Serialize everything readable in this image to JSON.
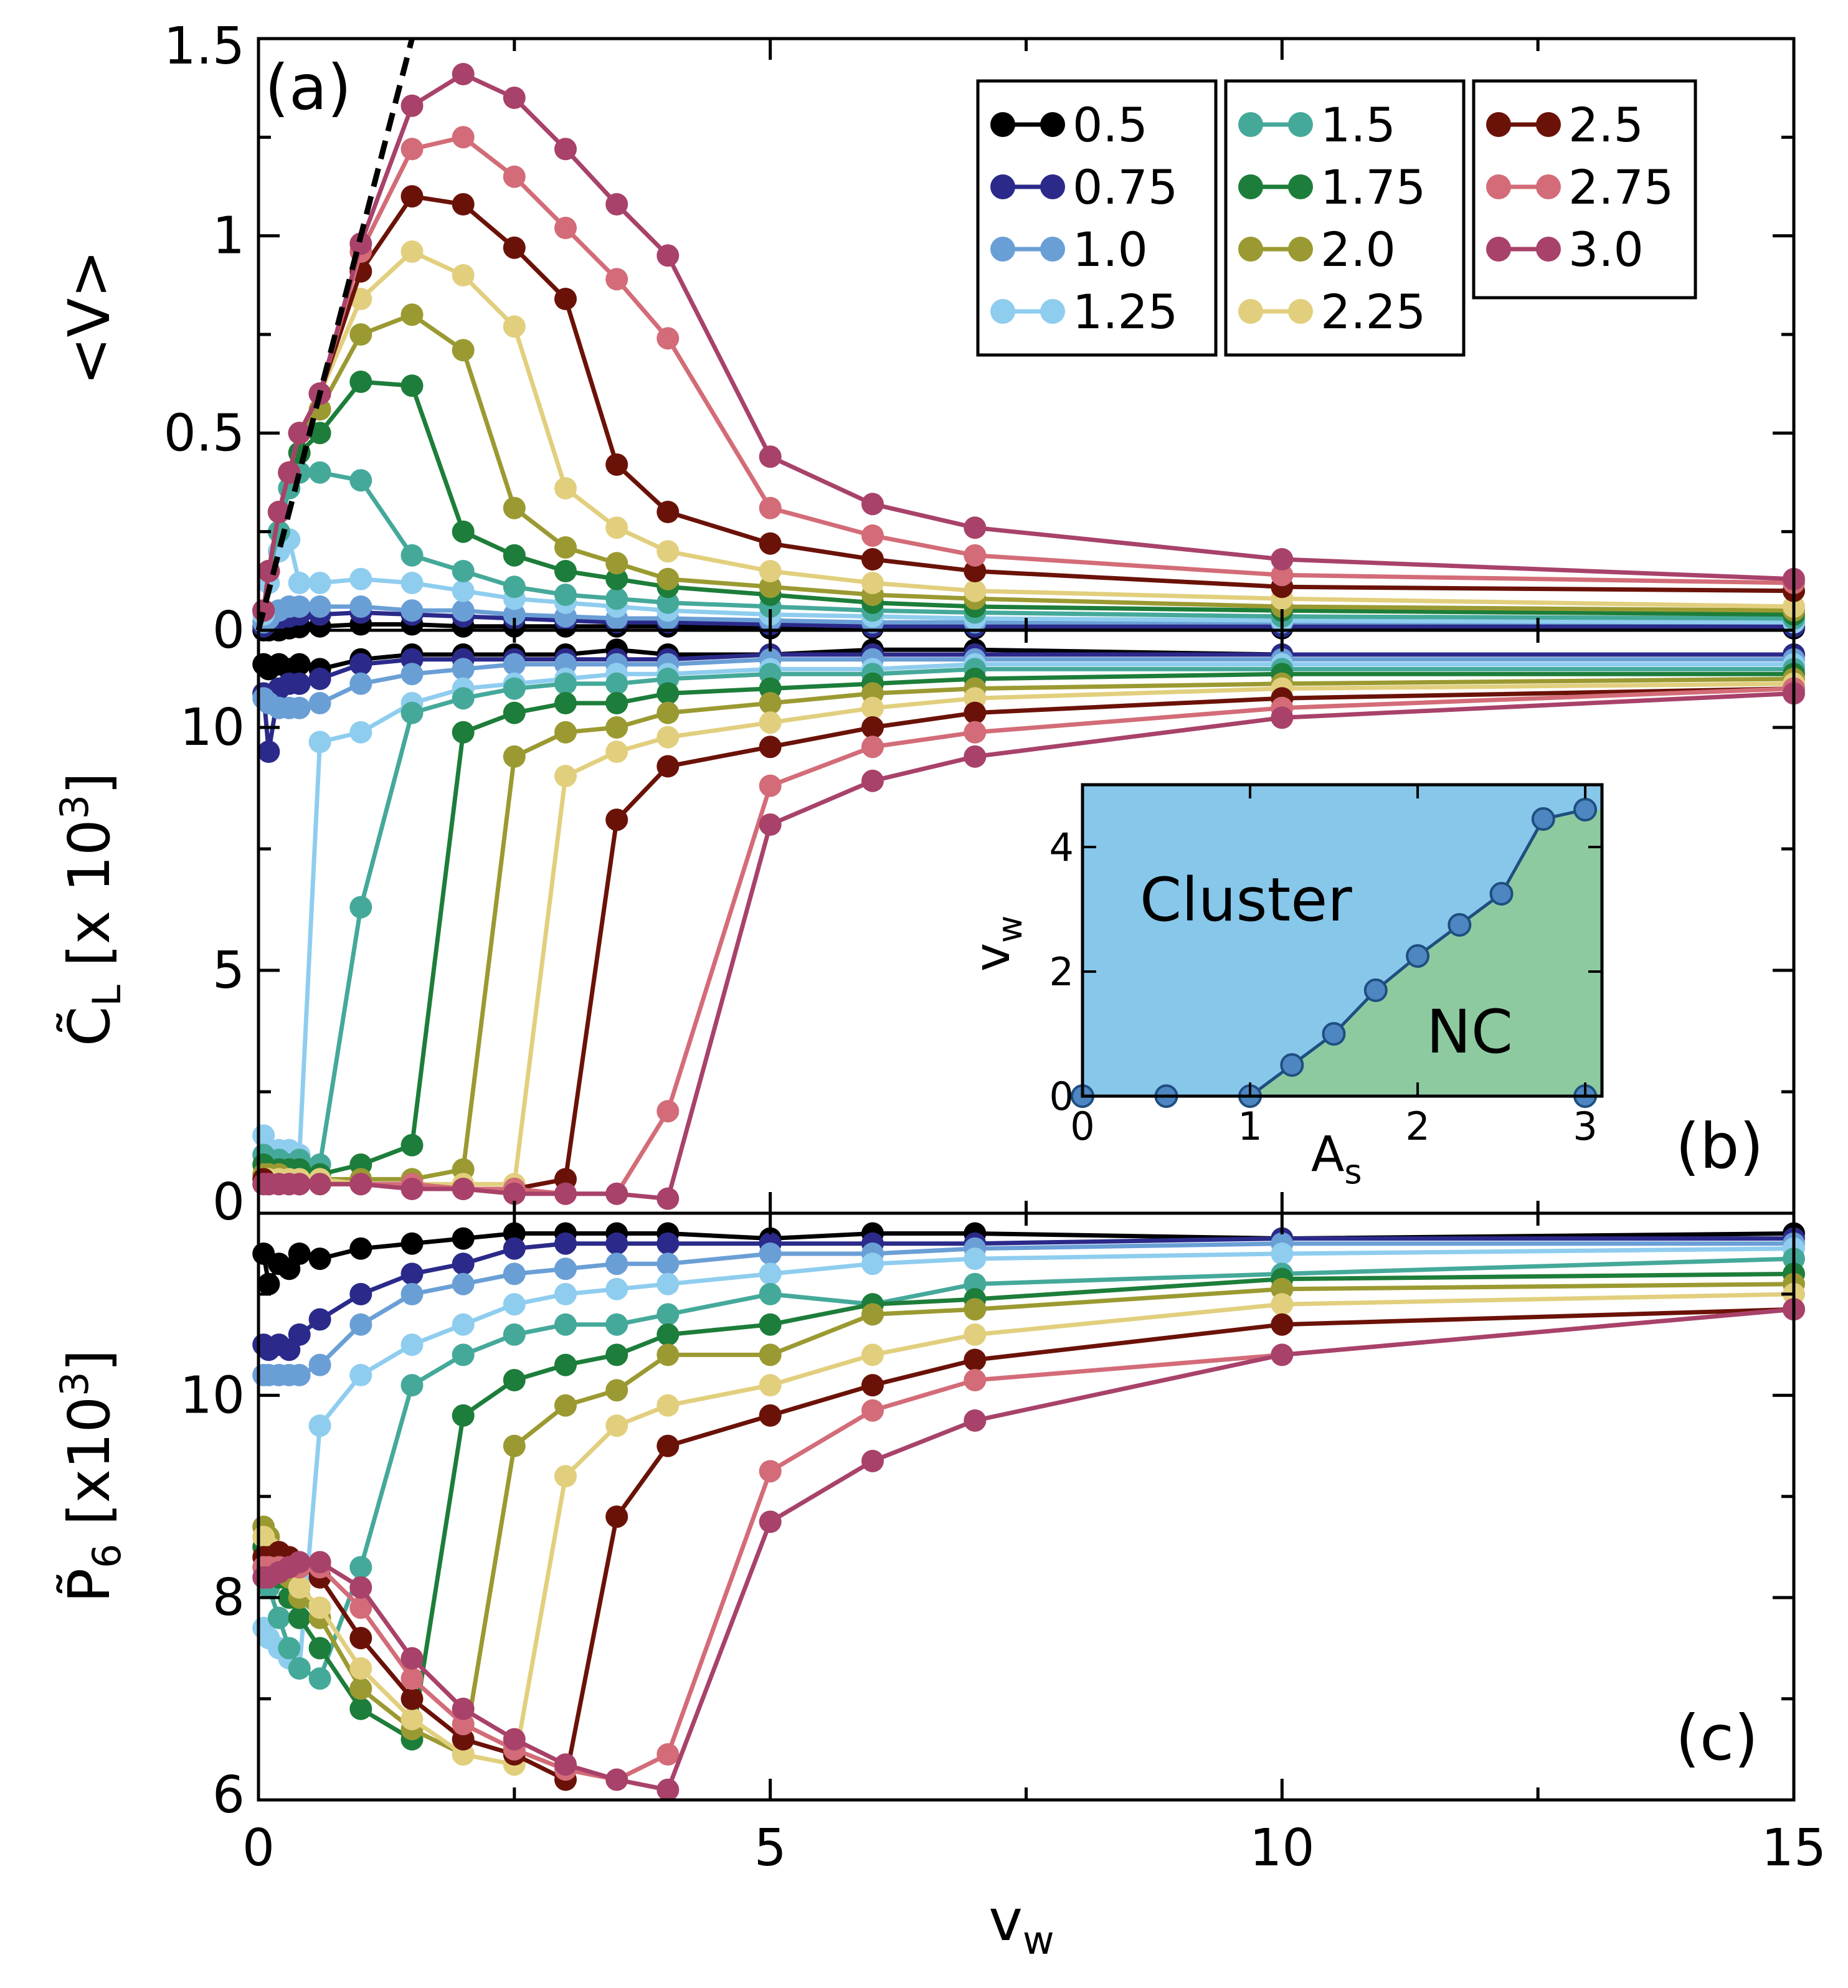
{
  "legend": [
    "0.5",
    "0.75",
    "1.0",
    "1.25",
    "1.5",
    "1.75",
    "2.0",
    "2.25",
    "2.5",
    "2.75",
    "3.0"
  ],
  "colors": [
    "#000000",
    "#2b2a8a",
    "#6a9fd6",
    "#8fcdef",
    "#45a99a",
    "#1d7d3a",
    "#9b9a32",
    "#e2cf7e",
    "#6b1208",
    "#d36c78",
    "#a8426a"
  ],
  "chart_data": [
    {
      "id": "a",
      "type": "line",
      "panel_label": "(a)",
      "ylabel": "<V>",
      "xlabel": "",
      "xlim": [
        0,
        15
      ],
      "ylim": [
        0,
        1.5
      ],
      "x_ticks": [
        "0",
        "5",
        "10",
        "15"
      ],
      "y_ticks": [
        "0",
        "0.5",
        "1",
        "1.5"
      ],
      "x": [
        0.05,
        0.1,
        0.2,
        0.3,
        0.4,
        0.6,
        1,
        1.5,
        2,
        2.5,
        3,
        3.5,
        4,
        5,
        6,
        7,
        10,
        15
      ],
      "series": [
        {
          "name": "0.5",
          "values": [
            0.0,
            0.0,
            0.0,
            0.005,
            0.008,
            0.01,
            0.015,
            0.015,
            0.01,
            0.01,
            0.01,
            0.01,
            0.01,
            0.005,
            0.005,
            0.005,
            0.005,
            0.005
          ]
        },
        {
          "name": "0.75",
          "values": [
            0.01,
            0.02,
            0.03,
            0.035,
            0.04,
            0.04,
            0.045,
            0.04,
            0.035,
            0.03,
            0.025,
            0.02,
            0.02,
            0.015,
            0.01,
            0.01,
            0.01,
            0.01
          ]
        },
        {
          "name": "1.0",
          "values": [
            0.02,
            0.03,
            0.05,
            0.06,
            0.06,
            0.06,
            0.06,
            0.05,
            0.05,
            0.04,
            0.035,
            0.03,
            0.03,
            0.025,
            0.02,
            0.02,
            0.02,
            0.02
          ]
        },
        {
          "name": "1.25",
          "values": [
            0.04,
            0.12,
            0.2,
            0.23,
            0.12,
            0.12,
            0.13,
            0.12,
            0.1,
            0.08,
            0.07,
            0.06,
            0.05,
            0.04,
            0.035,
            0.03,
            0.025,
            0.02
          ]
        },
        {
          "name": "1.5",
          "values": [
            0.05,
            0.15,
            0.25,
            0.36,
            0.4,
            0.4,
            0.38,
            0.19,
            0.15,
            0.11,
            0.09,
            0.08,
            0.07,
            0.06,
            0.05,
            0.045,
            0.035,
            0.03
          ]
        },
        {
          "name": "1.75",
          "values": [
            0.05,
            0.15,
            0.3,
            0.4,
            0.45,
            0.5,
            0.63,
            0.62,
            0.25,
            0.19,
            0.15,
            0.13,
            0.11,
            0.09,
            0.07,
            0.06,
            0.05,
            0.04
          ]
        },
        {
          "name": "2.0",
          "values": [
            0.05,
            0.15,
            0.3,
            0.4,
            0.5,
            0.56,
            0.75,
            0.8,
            0.71,
            0.31,
            0.21,
            0.17,
            0.13,
            0.11,
            0.09,
            0.08,
            0.06,
            0.05
          ]
        },
        {
          "name": "2.25",
          "values": [
            0.05,
            0.15,
            0.3,
            0.4,
            0.5,
            0.6,
            0.84,
            0.96,
            0.9,
            0.77,
            0.36,
            0.26,
            0.2,
            0.15,
            0.12,
            0.1,
            0.08,
            0.06
          ]
        },
        {
          "name": "2.5",
          "values": [
            0.05,
            0.15,
            0.3,
            0.4,
            0.5,
            0.6,
            0.91,
            1.1,
            1.08,
            0.97,
            0.84,
            0.42,
            0.3,
            0.22,
            0.18,
            0.15,
            0.11,
            0.1
          ]
        },
        {
          "name": "2.75",
          "values": [
            0.05,
            0.15,
            0.3,
            0.4,
            0.5,
            0.6,
            0.96,
            1.22,
            1.25,
            1.15,
            1.02,
            0.89,
            0.74,
            0.31,
            0.24,
            0.19,
            0.14,
            0.12
          ]
        },
        {
          "name": "3.0",
          "values": [
            0.05,
            0.15,
            0.3,
            0.4,
            0.5,
            0.6,
            0.98,
            1.33,
            1.41,
            1.35,
            1.22,
            1.08,
            0.95,
            0.44,
            0.32,
            0.26,
            0.18,
            0.13
          ]
        }
      ],
      "reference_line": {
        "style": "dashed",
        "x": [
          0,
          1.5
        ],
        "y": [
          0,
          1.5
        ]
      }
    },
    {
      "id": "b",
      "type": "line",
      "panel_label": "(b)",
      "ylabel": "C̃",
      "ylabel_sub": "L",
      "ylabel_rest": " [x 10",
      "ylabel_sup": "3",
      "ylabel_end": "]",
      "xlabel": "",
      "xlim": [
        0,
        15
      ],
      "ylim": [
        0,
        12
      ],
      "x_ticks": [
        "0",
        "5",
        "10",
        "15"
      ],
      "y_ticks": [
        "0",
        "5",
        "10"
      ],
      "x": [
        0.05,
        0.1,
        0.2,
        0.3,
        0.4,
        0.6,
        1,
        1.5,
        2,
        2.5,
        3,
        3.5,
        4,
        5,
        6,
        7,
        10,
        15
      ],
      "series": [
        {
          "name": "0.5",
          "values": [
            11.3,
            11.2,
            11.3,
            11.2,
            11.3,
            11.2,
            11.4,
            11.5,
            11.5,
            11.5,
            11.5,
            11.6,
            11.5,
            11.5,
            11.6,
            11.6,
            11.5,
            11.5
          ]
        },
        {
          "name": "0.75",
          "values": [
            10.7,
            9.5,
            10.8,
            10.9,
            10.9,
            11.0,
            11.3,
            11.4,
            11.4,
            11.4,
            11.4,
            11.4,
            11.4,
            11.5,
            11.5,
            11.5,
            11.5,
            11.5
          ]
        },
        {
          "name": "1.0",
          "values": [
            10.6,
            10.5,
            10.4,
            10.4,
            10.4,
            10.5,
            10.9,
            11.1,
            11.2,
            11.3,
            11.3,
            11.3,
            11.3,
            11.4,
            11.4,
            11.4,
            11.4,
            11.4
          ]
        },
        {
          "name": "1.25",
          "values": [
            1.6,
            1.3,
            1.3,
            1.3,
            1.2,
            9.7,
            9.9,
            10.5,
            10.8,
            10.9,
            11.0,
            11.1,
            11.1,
            11.2,
            11.2,
            11.3,
            11.3,
            11.3
          ]
        },
        {
          "name": "1.5",
          "values": [
            1.2,
            1.1,
            1.1,
            1.0,
            1.1,
            1.0,
            6.3,
            10.3,
            10.6,
            10.8,
            10.9,
            10.9,
            11.0,
            11.1,
            11.1,
            11.2,
            11.2,
            11.2
          ]
        },
        {
          "name": "1.75",
          "values": [
            1.0,
            0.9,
            0.9,
            0.9,
            0.9,
            0.8,
            1.0,
            1.4,
            9.9,
            10.3,
            10.5,
            10.5,
            10.7,
            10.8,
            10.9,
            11.0,
            11.1,
            11.1
          ]
        },
        {
          "name": "2.0",
          "values": [
            0.8,
            0.8,
            0.8,
            0.7,
            0.7,
            0.7,
            0.7,
            0.7,
            0.9,
            9.4,
            9.9,
            10.0,
            10.3,
            10.5,
            10.7,
            10.8,
            10.9,
            11.0
          ]
        },
        {
          "name": "2.25",
          "values": [
            0.7,
            0.7,
            0.7,
            0.7,
            0.7,
            0.7,
            0.6,
            0.6,
            0.6,
            0.6,
            9.0,
            9.5,
            9.8,
            10.1,
            10.4,
            10.6,
            10.8,
            10.9
          ]
        },
        {
          "name": "2.5",
          "values": [
            0.7,
            0.6,
            0.6,
            0.6,
            0.6,
            0.6,
            0.6,
            0.6,
            0.5,
            0.5,
            0.7,
            8.1,
            9.2,
            9.6,
            10.0,
            10.3,
            10.6,
            10.8
          ]
        },
        {
          "name": "2.75",
          "values": [
            0.6,
            0.6,
            0.6,
            0.6,
            0.6,
            0.6,
            0.6,
            0.6,
            0.5,
            0.5,
            0.4,
            0.4,
            2.1,
            8.8,
            9.6,
            9.9,
            10.4,
            10.8
          ]
        },
        {
          "name": "3.0",
          "values": [
            0.6,
            0.6,
            0.6,
            0.6,
            0.6,
            0.6,
            0.6,
            0.5,
            0.5,
            0.4,
            0.4,
            0.4,
            0.3,
            8.0,
            8.9,
            9.4,
            10.2,
            10.7
          ]
        }
      ]
    },
    {
      "id": "c",
      "type": "line",
      "panel_label": "(c)",
      "ylabel": "P̃",
      "ylabel_sub": "6",
      "ylabel_rest": " [x10",
      "ylabel_sup": "3",
      "ylabel_end": "]",
      "xlabel": "v",
      "xlabel_sub": "w",
      "xlim": [
        0,
        15
      ],
      "ylim": [
        6,
        11.8
      ],
      "x_ticks": [
        "0",
        "5",
        "10",
        "15"
      ],
      "y_ticks": [
        "6",
        "8",
        "10"
      ],
      "x": [
        0.05,
        0.1,
        0.2,
        0.3,
        0.4,
        0.6,
        1,
        1.5,
        2,
        2.5,
        3,
        3.5,
        4,
        5,
        6,
        7,
        10,
        15
      ],
      "series": [
        {
          "name": "0.5",
          "values": [
            11.4,
            11.1,
            11.3,
            11.25,
            11.4,
            11.35,
            11.45,
            11.5,
            11.55,
            11.6,
            11.6,
            11.6,
            11.6,
            11.55,
            11.6,
            11.6,
            11.55,
            11.6
          ]
        },
        {
          "name": "0.75",
          "values": [
            10.5,
            10.45,
            10.5,
            10.45,
            10.6,
            10.75,
            11.0,
            11.2,
            11.3,
            11.45,
            11.5,
            11.5,
            11.5,
            11.5,
            11.5,
            11.5,
            11.55,
            11.55
          ]
        },
        {
          "name": "1.0",
          "values": [
            10.2,
            10.2,
            10.2,
            10.2,
            10.2,
            10.3,
            10.7,
            11.0,
            11.1,
            11.2,
            11.25,
            11.3,
            11.3,
            11.4,
            11.4,
            11.45,
            11.5,
            11.5
          ]
        },
        {
          "name": "1.25",
          "values": [
            7.7,
            7.6,
            7.5,
            7.4,
            7.3,
            9.7,
            10.2,
            10.5,
            10.7,
            10.9,
            11.0,
            11.05,
            11.1,
            11.2,
            11.3,
            11.35,
            11.4,
            11.45
          ]
        },
        {
          "name": "1.5",
          "values": [
            8.3,
            8.1,
            7.8,
            7.5,
            7.3,
            7.2,
            8.3,
            10.1,
            10.4,
            10.6,
            10.7,
            10.7,
            10.8,
            11.0,
            10.9,
            11.1,
            11.2,
            11.35
          ]
        },
        {
          "name": "1.75",
          "values": [
            8.5,
            8.4,
            8.2,
            8.0,
            7.8,
            7.5,
            6.9,
            6.6,
            9.8,
            10.15,
            10.3,
            10.4,
            10.6,
            10.7,
            10.9,
            10.95,
            11.15,
            11.2
          ]
        },
        {
          "name": "2.0",
          "values": [
            8.7,
            8.6,
            8.4,
            8.2,
            8.0,
            7.8,
            7.1,
            6.7,
            6.45,
            9.5,
            9.9,
            10.05,
            10.4,
            10.4,
            10.8,
            10.85,
            11.05,
            11.1
          ]
        },
        {
          "name": "2.25",
          "values": [
            8.6,
            8.5,
            8.4,
            8.3,
            8.1,
            7.9,
            7.3,
            6.8,
            6.45,
            6.35,
            9.2,
            9.7,
            9.9,
            10.1,
            10.4,
            10.6,
            10.9,
            11.0
          ]
        },
        {
          "name": "2.5",
          "values": [
            8.4,
            8.4,
            8.45,
            8.4,
            8.3,
            8.2,
            7.6,
            7.0,
            6.6,
            6.45,
            6.2,
            8.8,
            9.5,
            9.8,
            10.1,
            10.35,
            10.7,
            10.85
          ]
        },
        {
          "name": "2.75",
          "values": [
            8.3,
            8.3,
            8.3,
            8.3,
            8.3,
            8.3,
            7.9,
            7.2,
            6.75,
            6.5,
            6.3,
            6.2,
            6.45,
            9.25,
            9.85,
            10.15,
            10.4,
            10.85
          ]
        },
        {
          "name": "3.0",
          "values": [
            8.2,
            8.2,
            8.25,
            8.3,
            8.35,
            8.35,
            8.1,
            7.4,
            6.9,
            6.6,
            6.35,
            6.2,
            6.1,
            8.75,
            9.35,
            9.75,
            10.4,
            10.85
          ]
        }
      ]
    },
    {
      "id": "inset",
      "type": "line",
      "xlabel": "A",
      "xlabel_sub": "s",
      "ylabel": "v",
      "ylabel_sub": "w",
      "xlim": [
        0,
        3.1
      ],
      "ylim": [
        0,
        5
      ],
      "x_ticks": [
        "0",
        "1",
        "2",
        "3"
      ],
      "y_ticks": [
        "0",
        "2",
        "4"
      ],
      "x": [
        0,
        0.5,
        1,
        1.25,
        1.5,
        1.75,
        2,
        2.25,
        2.5,
        2.75,
        3
      ],
      "values": [
        0,
        0,
        0,
        0.5,
        1.0,
        1.7,
        2.25,
        2.75,
        3.25,
        4.45,
        4.6
      ],
      "extra_point": {
        "x": 3,
        "y": 0
      },
      "regions": {
        "upper": "Cluster",
        "lower": "NC"
      },
      "region_colors": {
        "upper": "#87c7ea",
        "lower": "#8dcaa0"
      },
      "line_color": "#1f4e80",
      "marker_color": "#4d86c0"
    }
  ]
}
